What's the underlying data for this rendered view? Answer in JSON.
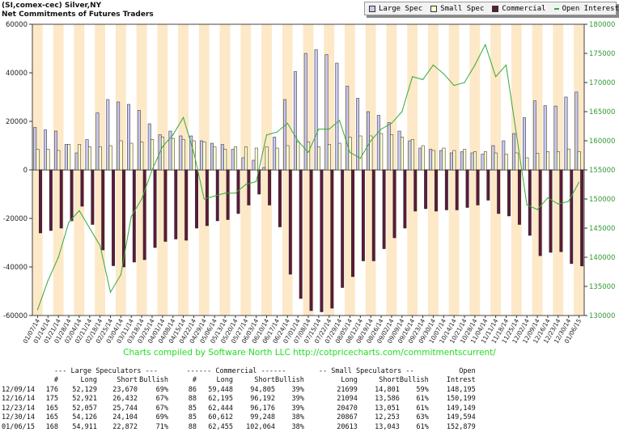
{
  "header": {
    "title": "(SI,comex-cec) Silver,NY",
    "subtitle": "Net Commitments of Futures Traders"
  },
  "legend": [
    {
      "label": "Large Spec",
      "color": "#c8c8f0"
    },
    {
      "label": "Small Spec",
      "color": "#ffffcc"
    },
    {
      "label": "Commercial",
      "color": "#5c1a3c"
    },
    {
      "label": "Open Interest",
      "color": "#33aa33"
    }
  ],
  "credit": "Charts compiled by Software North LLC  http://cotpricecharts.com/commitmentscurrent/",
  "chart_data": {
    "type": "bar",
    "title": "Net Commitments of Futures Traders",
    "y_left": {
      "min": -60000,
      "max": 60000,
      "ticks": [
        -60000,
        -40000,
        -20000,
        0,
        20000,
        40000,
        60000
      ]
    },
    "y_right": {
      "min": 130000,
      "max": 180000,
      "ticks": [
        130000,
        135000,
        140000,
        145000,
        150000,
        155000,
        160000,
        165000,
        170000,
        175000,
        180000
      ]
    },
    "categories": [
      "01/07/14",
      "01/14/14",
      "01/21/14",
      "01/28/14",
      "02/04/14",
      "02/11/14",
      "02/18/14",
      "02/25/14",
      "03/04/14",
      "03/11/14",
      "03/18/14",
      "03/25/14",
      "04/01/14",
      "04/08/14",
      "04/15/14",
      "04/22/14",
      "04/29/14",
      "05/06/14",
      "05/13/14",
      "05/20/14",
      "05/27/14",
      "06/03/14",
      "06/10/14",
      "06/17/14",
      "06/24/14",
      "07/01/14",
      "07/08/14",
      "07/15/14",
      "07/22/14",
      "07/29/14",
      "08/05/14",
      "08/12/14",
      "08/19/14",
      "08/26/14",
      "09/02/14",
      "09/09/14",
      "09/16/14",
      "09/23/14",
      "09/30/14",
      "10/07/14",
      "10/14/14",
      "10/21/14",
      "10/28/14",
      "11/04/14",
      "11/11/14",
      "11/18/14",
      "11/25/14",
      "12/02/14",
      "12/09/14",
      "12/16/14",
      "12/23/14",
      "12/30/14",
      "01/06/15"
    ],
    "series": [
      {
        "name": "Large Spec",
        "type": "bar",
        "axis": "left",
        "values": [
          17500,
          16500,
          16000,
          10500,
          7000,
          12500,
          23500,
          29000,
          28000,
          27000,
          24500,
          19000,
          14500,
          16000,
          14000,
          14000,
          12000,
          11000,
          10500,
          8500,
          5000,
          4000,
          1000,
          13500,
          29000,
          40500,
          48000,
          49500,
          47500,
          44000,
          34500,
          29500,
          24000,
          22500,
          19500,
          16000,
          12000,
          9000,
          8500,
          8000,
          7000,
          7500,
          7000,
          6500,
          10000,
          12000,
          15000,
          21500,
          28459,
          26489,
          26313,
          30022,
          32039
        ]
      },
      {
        "name": "Small Spec",
        "type": "bar",
        "axis": "left",
        "values": [
          8500,
          8500,
          8000,
          10500,
          10500,
          9500,
          9500,
          10000,
          12000,
          11000,
          11500,
          12500,
          13500,
          13000,
          12500,
          12000,
          11500,
          9500,
          8500,
          9500,
          9500,
          9000,
          9500,
          9000,
          10000,
          11500,
          11500,
          9500,
          10500,
          11000,
          13500,
          14000,
          14000,
          15000,
          14500,
          13500,
          12500,
          10000,
          8000,
          9000,
          8000,
          8500,
          7500,
          7500,
          7000,
          6500,
          7000,
          5000,
          6898,
          7508,
          7419,
          8614,
          7570
        ]
      },
      {
        "name": "Commercial",
        "type": "bar",
        "axis": "left",
        "values": [
          -26000,
          -25000,
          -24000,
          -21000,
          -15000,
          -22500,
          -33000,
          -39500,
          -40000,
          -38000,
          -37000,
          -32000,
          -29500,
          -28500,
          -29000,
          -24000,
          -23000,
          -21000,
          -20500,
          -18000,
          -14500,
          -10000,
          -14500,
          -23500,
          -43000,
          -53000,
          -58000,
          -58500,
          -57000,
          -48500,
          -44000,
          -37500,
          -37500,
          -32500,
          -28000,
          -24000,
          -17000,
          -16000,
          -17000,
          -16500,
          -16500,
          -15500,
          -14500,
          -12500,
          -18000,
          -19000,
          -22500,
          -27000,
          -35357,
          -34000,
          -33732,
          -38636,
          -39609
        ]
      },
      {
        "name": "Open Interest",
        "type": "line",
        "axis": "right",
        "values": [
          131000,
          136000,
          140000,
          146000,
          148000,
          145000,
          142000,
          134000,
          137000,
          147000,
          150000,
          155000,
          159000,
          161000,
          164000,
          158000,
          150000,
          150500,
          151000,
          151000,
          152500,
          153000,
          161000,
          161500,
          163000,
          160000,
          158000,
          162000,
          162000,
          163500,
          158000,
          157000,
          160000,
          162000,
          163000,
          165000,
          171000,
          170500,
          173000,
          171500,
          169500,
          170000,
          173000,
          176500,
          171000,
          173000,
          161000,
          149000,
          148195,
          150199,
          149149,
          149594,
          152879
        ]
      }
    ]
  },
  "table": {
    "group_headers": [
      "--- Large Speculators ---",
      "------ Commercial ------",
      "-- Small Speculators --",
      "Open"
    ],
    "columns": [
      "#",
      "Long",
      "Short",
      "Bullish",
      "#",
      "Long",
      "Short",
      "Bullish",
      "Long",
      "Short",
      "Bullish",
      "Intrest"
    ],
    "rows": [
      [
        "12/09/14",
        "176",
        "52,129",
        "23,670",
        "69%",
        "86",
        "59,448",
        "94,805",
        "39%",
        "21699",
        "14,801",
        "59%",
        "148,195"
      ],
      [
        "12/16/14",
        "175",
        "52,921",
        "26,432",
        "67%",
        "88",
        "62,195",
        "96,192",
        "39%",
        "21094",
        "13,586",
        "61%",
        "150,199"
      ],
      [
        "12/23/14",
        "165",
        "52,057",
        "25,744",
        "67%",
        "85",
        "62,444",
        "96,176",
        "39%",
        "20470",
        "13,051",
        "61%",
        "149,149"
      ],
      [
        "12/30/14",
        "165",
        "54,126",
        "24,104",
        "69%",
        "85",
        "60,612",
        "99,248",
        "38%",
        "20867",
        "12,253",
        "63%",
        "149,594"
      ],
      [
        "01/06/15",
        "168",
        "54,911",
        "22,872",
        "71%",
        "88",
        "62,455",
        "102,064",
        "38%",
        "20613",
        "13,043",
        "61%",
        "152,879"
      ]
    ]
  }
}
